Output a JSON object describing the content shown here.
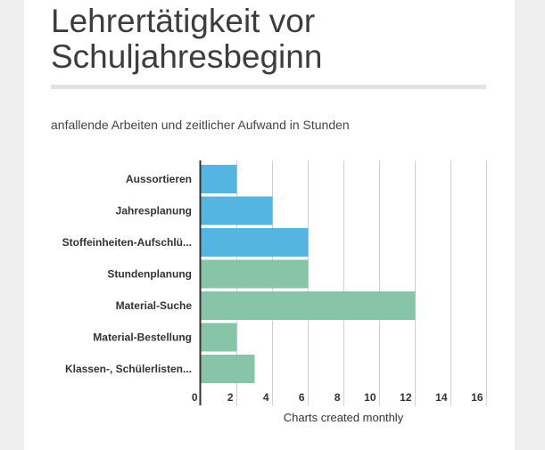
{
  "title_lines": [
    "Lehrertätigkeit vor",
    "Schuljahresbeginn"
  ],
  "subtitle": "anfallende Arbeiten und zeitlicher Aufwand in Stunden",
  "chart_data": {
    "type": "bar",
    "orientation": "horizontal",
    "categories": [
      "Aussortieren",
      "Jahresplanung",
      "Stoffeinheiten-Aufschlü...",
      "Stundenplanung",
      "Material-Suche",
      "Material-Bestellung",
      "Klassen-, Schülerlisten..."
    ],
    "values": [
      2,
      4,
      6,
      6,
      12,
      2,
      3
    ],
    "bar_colors": [
      "#54b5e0",
      "#54b5e0",
      "#54b5e0",
      "#88c4a8",
      "#88c4a8",
      "#88c4a8",
      "#88c4a8"
    ],
    "xlabel": "Charts created monthly",
    "xlim": [
      0,
      16
    ],
    "xticks": [
      "0",
      "2",
      "4",
      "6",
      "8",
      "10",
      "12",
      "14",
      "16"
    ],
    "grid": true
  }
}
